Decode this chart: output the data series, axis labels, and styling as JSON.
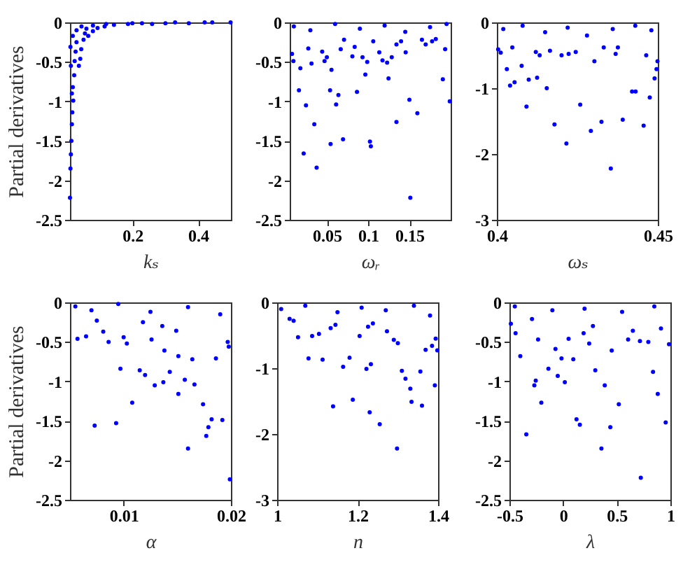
{
  "chart_data": [
    {
      "type": "scatter",
      "xlabel": "kₛ",
      "ylabel": "Partial derivatives",
      "color": "#0000ff",
      "marker": "circle",
      "grid": false,
      "xlim": [
        0.01,
        0.5
      ],
      "ylim": [
        -2.5,
        0
      ],
      "xticks": [
        0.2,
        0.4
      ],
      "yticks": [
        -2.5,
        -2,
        -1.5,
        -1,
        -0.5,
        0
      ],
      "x": [
        0.01,
        0.0114,
        0.0128,
        0.0143,
        0.0157,
        0.0171,
        0.0157,
        0.0185,
        0.02,
        0.0228,
        0.0242,
        0.0271,
        0.0299,
        0.0371,
        0.0413,
        0.0442,
        0.0513,
        0.0556,
        0.0656,
        0.0798,
        0.094,
        0.1154,
        0.1439,
        0.1866,
        0.2293,
        0.3006,
        0.3718,
        0.4431,
        0.499,
        0.0114,
        0.0128,
        0.0185,
        0.03,
        0.045,
        0.06,
        0.08,
        0.12,
        0.2,
        0.26,
        0.33,
        0.42
      ],
      "values": [
        -2.22,
        -1.85,
        -1.67,
        -1.5,
        -1.29,
        -1.14,
        -0.9,
        -0.82,
        -0.99,
        -0.67,
        -0.49,
        -0.37,
        -0.25,
        -0.55,
        -0.46,
        -0.34,
        -0.22,
        -0.14,
        -0.17,
        -0.11,
        -0.07,
        -0.05,
        -0.03,
        -0.02,
        -0.01,
        -0.01,
        -0.01,
        0,
        0,
        -0.31,
        -0.55,
        -0.17,
        -0.1,
        -0.05,
        -0.08,
        -0.04,
        -0.02,
        -0.01,
        -0.02,
        0,
        0
      ]
    },
    {
      "type": "scatter",
      "xlabel": "ωᵣ",
      "color": "#0000ff",
      "marker": "circle",
      "grid": false,
      "xlim": [
        0.005,
        0.2
      ],
      "ylim": [
        -2.5,
        0
      ],
      "xticks": [
        0.05,
        0.1,
        0.15
      ],
      "yticks": [
        -2.5,
        -2,
        -1.5,
        -1,
        -0.5,
        0
      ],
      "x": [
        0.0162,
        0.0247,
        0.0219,
        0.0348,
        0.0376,
        0.0545,
        0.0696,
        0.0612,
        0.064,
        0.0539,
        0.0865,
        0.0966,
        0.1022,
        0.1033,
        0.1247,
        0.1343,
        0.15,
        0.1596,
        0.1511,
        0.1905,
        0.1989,
        0.1933,
        0.0078,
        0.0095,
        0.0179,
        0.0275,
        0.0314,
        0.0443,
        0.0472,
        0.05,
        0.0556,
        0.0668,
        0.0708,
        0.0809,
        0.0837,
        0.0932,
        0.0989,
        0.1062,
        0.1135,
        0.1174,
        0.123,
        0.1286,
        0.1343,
        0.1399,
        0.1455,
        0.1652,
        0.1697,
        0.1775,
        0.182,
        0.01,
        0.03,
        0.06,
        0.09,
        0.12,
        0.145,
        0.175,
        0.195
      ],
      "values": [
        -0.86,
        -1.05,
        -1.66,
        -1.29,
        -1.84,
        -1.54,
        -1.48,
        -1.04,
        -0.92,
        -0.86,
        -0.88,
        -0.66,
        -1.51,
        -1.57,
        -0.71,
        -1.26,
        -0.98,
        -1.15,
        -2.22,
        -0.72,
        -1.0,
        -0.34,
        -0.4,
        -0.49,
        -0.58,
        -0.33,
        -0.52,
        -0.37,
        -0.49,
        -0.44,
        -0.6,
        -0.34,
        -0.22,
        -0.43,
        -0.31,
        -0.44,
        -0.5,
        -0.24,
        -0.38,
        -0.48,
        -0.51,
        -0.44,
        -0.28,
        -0.24,
        -0.38,
        -0.22,
        -0.28,
        -0.24,
        -0.21,
        -0.05,
        -0.1,
        -0.02,
        -0.08,
        -0.04,
        -0.12,
        -0.06,
        -0.02
      ]
    },
    {
      "type": "scatter",
      "xlabel": "ωₛ",
      "color": "#0000ff",
      "marker": "circle",
      "grid": false,
      "xlim": [
        0.4,
        0.45
      ],
      "ylim": [
        -3,
        0
      ],
      "xticks": [
        0.4,
        0.45
      ],
      "yticks": [
        -3,
        -2,
        -1,
        0
      ],
      "x": [
        0.4004,
        0.4012,
        0.4031,
        0.4041,
        0.4055,
        0.4077,
        0.4092,
        0.4099,
        0.4125,
        0.4155,
        0.4179,
        0.4216,
        0.4259,
        0.4292,
        0.4325,
        0.4354,
        0.4303,
        0.4391,
        0.442,
        0.4431,
        0.4456,
        0.4475,
        0.449,
        0.4496,
        0.4499,
        0.4464,
        0.4165,
        0.4201,
        0.4223,
        0.4245,
        0.4332,
        0.4369,
        0.4376,
        0.4121,
        0.4133,
        0.4048,
        0.402,
        0.408,
        0.415,
        0.422,
        0.428,
        0.436,
        0.443,
        0.448
      ],
      "values": [
        -0.41,
        -0.46,
        -0.71,
        -0.96,
        -0.91,
        -0.66,
        -1.28,
        -0.87,
        -0.84,
        -1.0,
        -1.55,
        -1.84,
        -1.25,
        -1.65,
        -1.51,
        -2.22,
        -0.59,
        -1.48,
        -1.05,
        -1.05,
        -1.57,
        -1.14,
        -0.85,
        -0.71,
        -0.59,
        -0.5,
        -0.43,
        -0.5,
        -0.48,
        -0.45,
        -0.38,
        -0.48,
        -0.38,
        -0.45,
        -0.5,
        -0.38,
        -0.1,
        -0.05,
        -0.15,
        -0.08,
        -0.2,
        -0.1,
        -0.05,
        -0.12
      ]
    },
    {
      "type": "scatter",
      "xlabel": "α",
      "ylabel": "Partial derivatives",
      "color": "#0000ff",
      "marker": "circle",
      "grid": false,
      "xlim": [
        0.005,
        0.02
      ],
      "ylim": [
        -2.5,
        0
      ],
      "xticks": [
        0.01,
        0.02
      ],
      "yticks": [
        -2.5,
        -2,
        -1.5,
        -1,
        -0.5,
        0
      ],
      "x": [
        0.0057,
        0.0065,
        0.0073,
        0.0075,
        0.0081,
        0.0086,
        0.0093,
        0.0097,
        0.01,
        0.0103,
        0.0108,
        0.0115,
        0.012,
        0.0126,
        0.0129,
        0.0137,
        0.0138,
        0.0143,
        0.0151,
        0.0151,
        0.0157,
        0.016,
        0.0164,
        0.0166,
        0.0174,
        0.0177,
        0.0179,
        0.0182,
        0.0186,
        0.0192,
        0.0197,
        0.0199,
        0.0198,
        0.0149,
        0.0136,
        0.0118,
        0.0055,
        0.007,
        0.0095,
        0.0125,
        0.016,
        0.019
      ],
      "values": [
        -0.46,
        -0.43,
        -1.56,
        -0.23,
        -0.37,
        -0.5,
        -1.53,
        -0.84,
        -0.44,
        -0.52,
        -1.27,
        -0.86,
        -0.92,
        -0.47,
        -1.05,
        -1.01,
        -0.61,
        -0.88,
        -0.68,
        -1.16,
        -0.98,
        -1.85,
        -0.72,
        -1.04,
        -1.29,
        -1.69,
        -1.58,
        -1.48,
        -0.71,
        -1.49,
        -0.5,
        -2.24,
        -0.56,
        -0.36,
        -0.3,
        -0.25,
        -0.05,
        -0.1,
        -0.02,
        -0.12,
        -0.06,
        -0.15
      ]
    },
    {
      "type": "scatter",
      "xlabel": "n",
      "color": "#0000ff",
      "marker": "circle",
      "grid": false,
      "xlim": [
        1,
        1.4
      ],
      "ylim": [
        -3,
        0
      ],
      "xticks": [
        1,
        1.2,
        1.4
      ],
      "yticks": [
        -3,
        -2,
        -1,
        0
      ],
      "x": [
        1.052,
        1.078,
        1.087,
        1.113,
        1.104,
        1.139,
        1.188,
        1.18,
        1.164,
        1.205,
        1.222,
        1.23,
        1.233,
        1.255,
        1.273,
        1.298,
        1.31,
        1.319,
        1.331,
        1.334,
        1.356,
        1.36,
        1.369,
        1.385,
        1.392,
        1.394,
        1.398,
        1.29,
        1.3,
        1.133,
        1.145,
        1.226,
        1.238,
        1.041,
        1.031,
        1.01,
        1.07,
        1.15,
        1.21,
        1.27,
        1.34,
        1.38
      ],
      "values": [
        -0.53,
        -0.85,
        -0.51,
        -0.87,
        -0.48,
        -1.58,
        -1.48,
        -0.84,
        -0.98,
        -0.51,
        -1.01,
        -1.67,
        -0.94,
        -1.85,
        -0.44,
        -2.22,
        -1.04,
        -1.16,
        -1.31,
        -1.51,
        -1.05,
        -1.57,
        -0.72,
        -0.66,
        -1.26,
        -0.55,
        -0.73,
        -0.57,
        -0.62,
        -0.39,
        -0.34,
        -0.37,
        -0.32,
        -0.28,
        -0.25,
        -0.1,
        -0.05,
        -0.15,
        -0.08,
        -0.12,
        -0.05,
        -0.2
      ]
    },
    {
      "type": "scatter",
      "xlabel": "λ",
      "color": "#0000ff",
      "marker": "circle",
      "grid": false,
      "xlim": [
        -0.5,
        1
      ],
      "ylim": [
        -2.5,
        0
      ],
      "xticks": [
        -0.5,
        0,
        0.5,
        1
      ],
      "yticks": [
        -2.5,
        -2,
        -1.5,
        -1,
        -0.5,
        0
      ],
      "x": [
        -0.487,
        -0.443,
        -0.399,
        -0.343,
        -0.268,
        -0.255,
        -0.233,
        -0.203,
        -0.137,
        -0.071,
        -0.05,
        -0.015,
        0.016,
        0.051,
        0.095,
        0.125,
        0.156,
        0.191,
        0.243,
        0.3,
        0.357,
        0.388,
        0.453,
        0.44,
        0.519,
        0.606,
        0.716,
        0.794,
        0.724,
        0.838,
        0.882,
        0.956,
        0.987,
        0.912,
        0.65,
        0.278,
        -0.29,
        -0.45,
        -0.1,
        0.2,
        0.55,
        0.85
      ],
      "values": [
        -0.27,
        -0.39,
        -0.68,
        -1.67,
        -1.05,
        -0.99,
        -0.47,
        -1.27,
        -0.84,
        -0.59,
        -0.93,
        -0.71,
        -1.01,
        -0.46,
        -0.72,
        -1.48,
        -1.55,
        -0.39,
        -0.52,
        -0.86,
        -1.85,
        -1.05,
        -0.61,
        -1.58,
        -1.29,
        -0.47,
        -0.49,
        -0.5,
        -2.22,
        -0.88,
        -1.16,
        -1.52,
        -0.53,
        -0.33,
        -0.36,
        -0.3,
        -0.21,
        -0.05,
        -0.1,
        -0.08,
        -0.12,
        -0.05
      ]
    }
  ]
}
